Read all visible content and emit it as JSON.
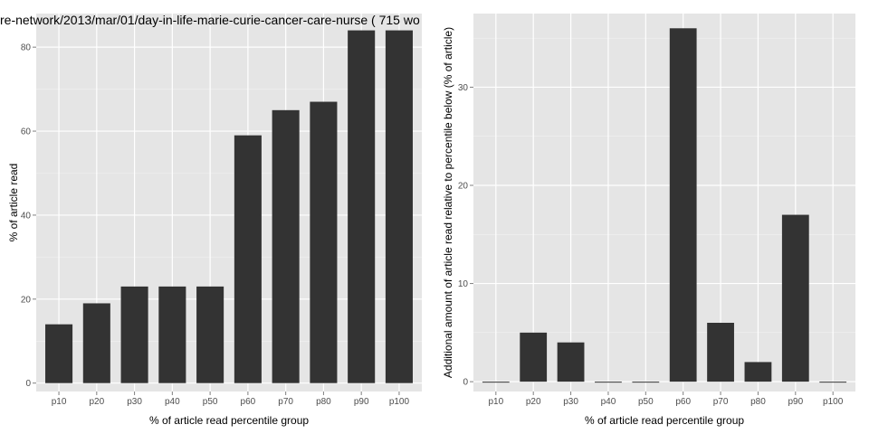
{
  "colors": {
    "panel_bg": "#e5e5e5",
    "grid_major": "#ffffff",
    "grid_minor": "#f2f2f2",
    "bar": "#333333"
  },
  "chart_data": [
    {
      "type": "bar",
      "title": "re-network/2013/mar/01/day-in-life-marie-curie-cancer-care-nurse ( 715 wo",
      "categories": [
        "p10",
        "p20",
        "p30",
        "p40",
        "p50",
        "p60",
        "p70",
        "p80",
        "p90",
        "p100"
      ],
      "values": [
        14,
        19,
        23,
        23,
        23,
        59,
        65,
        67,
        84,
        84
      ],
      "xlabel": "% of article read percentile group",
      "ylabel": "% of article read",
      "ylim": [
        -2,
        88
      ],
      "yticks": [
        0,
        20,
        40,
        60,
        80
      ],
      "grid": true
    },
    {
      "type": "bar",
      "title": "",
      "categories": [
        "p10",
        "p20",
        "p30",
        "p40",
        "p50",
        "p60",
        "p70",
        "p80",
        "p90",
        "p100"
      ],
      "values": [
        0,
        5,
        4,
        0,
        0,
        36,
        6,
        2,
        17,
        0
      ],
      "xlabel": "% of article read percentile group",
      "ylabel": "Additional amount of article read relative to percentile below (% of article)",
      "ylim": [
        -1,
        37.5
      ],
      "yticks": [
        0,
        10,
        20,
        30
      ],
      "grid": true
    }
  ]
}
